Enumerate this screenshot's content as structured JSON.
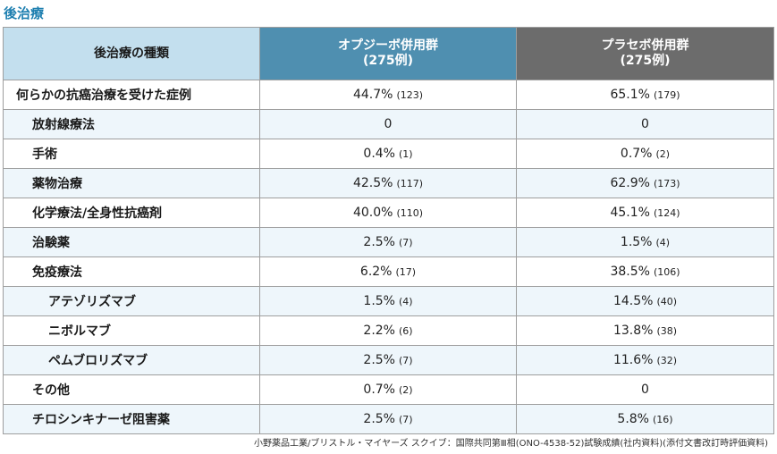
{
  "title": "後治療",
  "table": {
    "headers": [
      {
        "line1": "後治療の種類",
        "line2": ""
      },
      {
        "line1": "オプジーボ併用群",
        "line2": "(275例)"
      },
      {
        "line1": "プラセボ併用群",
        "line2": "(275例)"
      }
    ],
    "rows": [
      {
        "label": "何らかの抗癌治療を受けた症例",
        "level": 0,
        "opdivo": {
          "pct": "44.7%",
          "n": "(123)"
        },
        "placebo": {
          "pct": "65.1%",
          "n": "(179)"
        }
      },
      {
        "label": "放射線療法",
        "level": 1,
        "opdivo": {
          "pct": "0",
          "n": ""
        },
        "placebo": {
          "pct": "0",
          "n": ""
        }
      },
      {
        "label": "手術",
        "level": 1,
        "opdivo": {
          "pct": "0.4%",
          "n": "(1)"
        },
        "placebo": {
          "pct": "0.7%",
          "n": "(2)"
        }
      },
      {
        "label": "薬物治療",
        "level": 1,
        "opdivo": {
          "pct": "42.5%",
          "n": "(117)"
        },
        "placebo": {
          "pct": "62.9%",
          "n": "(173)"
        }
      },
      {
        "label": "化学療法/全身性抗癌剤",
        "level": 1,
        "opdivo": {
          "pct": "40.0%",
          "n": "(110)"
        },
        "placebo": {
          "pct": "45.1%",
          "n": "(124)"
        }
      },
      {
        "label": "治験薬",
        "level": 1,
        "opdivo": {
          "pct": "2.5%",
          "n": "(7)"
        },
        "placebo": {
          "pct": "1.5%",
          "n": "(4)"
        }
      },
      {
        "label": "免疫療法",
        "level": 1,
        "opdivo": {
          "pct": "6.2%",
          "n": "(17)"
        },
        "placebo": {
          "pct": "38.5%",
          "n": "(106)"
        }
      },
      {
        "label": "アテゾリズマブ",
        "level": 2,
        "opdivo": {
          "pct": "1.5%",
          "n": "(4)"
        },
        "placebo": {
          "pct": "14.5%",
          "n": "(40)"
        }
      },
      {
        "label": "ニボルマブ",
        "level": 2,
        "opdivo": {
          "pct": "2.2%",
          "n": "(6)"
        },
        "placebo": {
          "pct": "13.8%",
          "n": "(38)"
        }
      },
      {
        "label": "ペムブロリズマブ",
        "level": 2,
        "opdivo": {
          "pct": "2.5%",
          "n": "(7)"
        },
        "placebo": {
          "pct": "11.6%",
          "n": "(32)"
        }
      },
      {
        "label": "その他",
        "level": 1,
        "opdivo": {
          "pct": "0.7%",
          "n": "(2)"
        },
        "placebo": {
          "pct": "0",
          "n": ""
        }
      },
      {
        "label": "チロシンキナーゼ阻害薬",
        "level": 1,
        "opdivo": {
          "pct": "2.5%",
          "n": "(7)"
        },
        "placebo": {
          "pct": "5.8%",
          "n": "(16)"
        }
      }
    ]
  },
  "source": "小野薬品工業/ブリストル・マイヤーズ スクイブ：国際共同第Ⅲ相(ONO-4538-52)試験成績(社内資料)(添付文書改訂時評価資料)",
  "colors": {
    "title": "#1e7fb0",
    "header_label_bg": "#c3dfee",
    "header_opdivo_bg": "#4f8fb0",
    "header_placebo_bg": "#6c6c6c",
    "row_alt_bg": "#eef6fb"
  }
}
